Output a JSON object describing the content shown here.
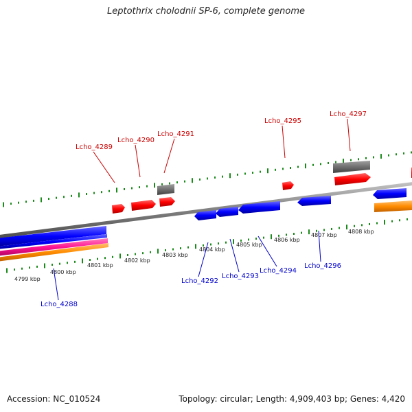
{
  "title": "Leptothrix cholodnii SP-6, complete genome",
  "footer": {
    "accession": "Accession: NC_010524",
    "summary": "Topology: circular; Length: 4,909,403 bp; Genes: 4,420"
  },
  "colors": {
    "backbone": "#888888",
    "tick": "#1a8a1a",
    "red": "#ff0000",
    "blue": "#0000ff",
    "gray": "#707070",
    "orange": "#ff8c00",
    "magenta": "#ff1493",
    "label_red": "#cc0000",
    "label_blue": "#0000cc"
  },
  "scale": {
    "unit": "kbp",
    "labels": [
      "4799 kbp",
      "4800 kbp",
      "4801 kbp",
      "4802 kbp",
      "4803 kbp",
      "4804 kbp",
      "4805 kbp",
      "4806 kbp",
      "4807 kbp",
      "4808 kbp"
    ]
  },
  "genes": {
    "forward": [
      "Lcho_4289",
      "Lcho_4290",
      "Lcho_4291",
      "Lcho_4295",
      "Lcho_4297"
    ],
    "reverse": [
      "Lcho_4288",
      "Lcho_4292",
      "Lcho_4293",
      "Lcho_4294",
      "Lcho_4296"
    ]
  }
}
